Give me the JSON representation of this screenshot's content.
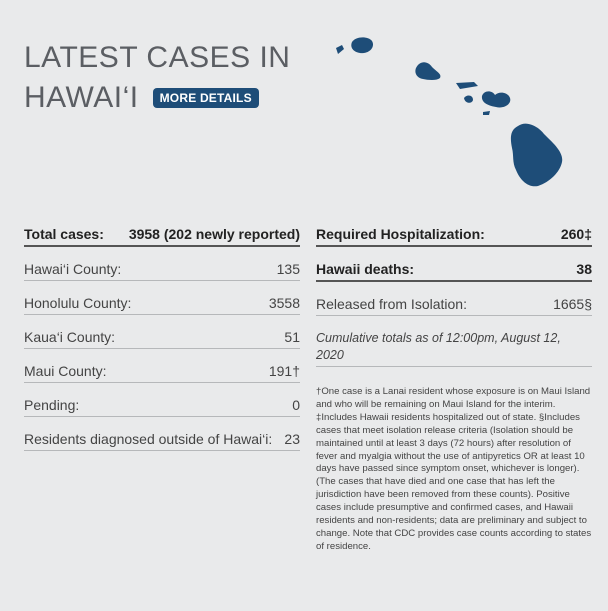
{
  "header": {
    "title_line1": "LATEST CASES IN",
    "title_line2": "HAWAI‘I",
    "more_details_label": "MORE DETAILS"
  },
  "colors": {
    "accent": "#1e4d78",
    "background": "#e9eaeb",
    "map_fill": "#1e4d78"
  },
  "left": {
    "total": {
      "label": "Total cases:",
      "value": "3958 (202 newly reported)"
    },
    "rows": [
      {
        "label": "Hawai‘i County:",
        "value": "135"
      },
      {
        "label": "Honolulu County:",
        "value": "3558"
      },
      {
        "label": "Kaua‘i County:",
        "value": "51"
      },
      {
        "label": "Maui County:",
        "value": "191†"
      },
      {
        "label": "Pending:",
        "value": "0"
      },
      {
        "label": "Residents diagnosed outside of Hawai‘i:",
        "value": "23"
      }
    ]
  },
  "right": {
    "hospitalization": {
      "label": "Required Hospitalization:",
      "value": "260‡"
    },
    "deaths": {
      "label": "Hawaii deaths:",
      "value": "38"
    },
    "released": {
      "label": "Released from Isolation:",
      "value": "1665§"
    },
    "cumulative": "Cumulative totals as of 12:00pm, August 12, 2020",
    "note": "†One case is a Lanai resident whose exposure is on Maui Island and who will be remaining on Maui Island for the interim. ‡Includes Hawaii residents hospitalized out of state. §Includes cases that meet isolation release criteria (Isolation should be maintained until at least 3 days (72 hours) after resolution of fever and myalgia without the use of antipyretics OR at least 10 days have passed since symptom onset, whichever is longer). (The cases that have died and one case that has left the jurisdiction have been removed from these counts). Positive cases include presumptive and confirmed cases, and Hawaii residents and non-residents; data are preliminary and subject to change. Note that CDC provides case counts according to states of residence."
  }
}
